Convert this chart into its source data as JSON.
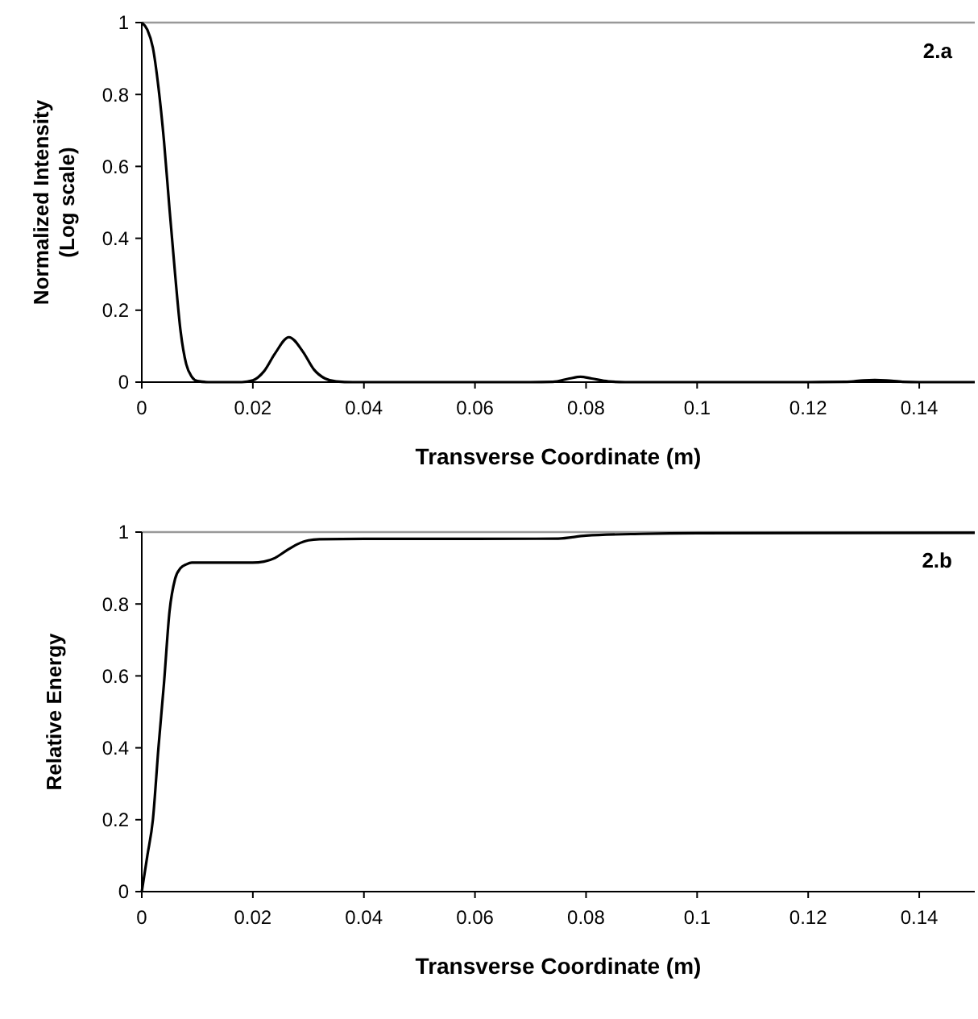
{
  "chart_data": [
    {
      "type": "line",
      "xlabel": "Transverse Coordinate (m)",
      "ylabel": "Normalized Intensity\n(Log scale)",
      "annotations": [
        "2.a"
      ],
      "xlim": [
        0,
        0.15
      ],
      "ylim": [
        0,
        1
      ],
      "xticks": [
        0,
        0.02,
        0.04,
        0.06,
        0.08,
        0.1,
        0.12,
        0.14
      ],
      "yticks": [
        0,
        0.2,
        0.4,
        0.6,
        0.8,
        1
      ],
      "grid": false,
      "series": [
        {
          "color": "#000000",
          "x": [
            0,
            0.001,
            0.002,
            0.003,
            0.004,
            0.005,
            0.006,
            0.007,
            0.008,
            0.009,
            0.01,
            0.012,
            0.015,
            0.018,
            0.02,
            0.022,
            0.024,
            0.0265,
            0.029,
            0.031,
            0.033,
            0.035,
            0.038,
            0.05,
            0.07,
            0.074,
            0.077,
            0.079,
            0.081,
            0.084,
            0.087,
            0.1,
            0.12,
            0.127,
            0.13,
            0.132,
            0.134,
            0.137,
            0.14,
            0.15
          ],
          "values": [
            1,
            0.98,
            0.93,
            0.82,
            0.67,
            0.48,
            0.3,
            0.14,
            0.05,
            0.015,
            0.003,
            0,
            0,
            0,
            0.005,
            0.03,
            0.08,
            0.125,
            0.085,
            0.035,
            0.01,
            0.002,
            0,
            0,
            0,
            0.001,
            0.01,
            0.015,
            0.01,
            0.002,
            0,
            0,
            0,
            0.001,
            0.005,
            0.006,
            0.005,
            0.001,
            0,
            0
          ]
        }
      ]
    },
    {
      "type": "line",
      "xlabel": "Transverse Coordinate (m)",
      "ylabel": "Relative Energy",
      "annotations": [
        "2.b"
      ],
      "xlim": [
        0,
        0.15
      ],
      "ylim": [
        0,
        1
      ],
      "xticks": [
        0,
        0.02,
        0.04,
        0.06,
        0.08,
        0.1,
        0.12,
        0.14
      ],
      "yticks": [
        0,
        0.2,
        0.4,
        0.6,
        0.8,
        1
      ],
      "grid": false,
      "series": [
        {
          "color": "#000000",
          "x": [
            0,
            0.001,
            0.002,
            0.003,
            0.004,
            0.005,
            0.006,
            0.007,
            0.008,
            0.009,
            0.012,
            0.02,
            0.022,
            0.024,
            0.026,
            0.028,
            0.03,
            0.032,
            0.04,
            0.06,
            0.075,
            0.08,
            0.09,
            0.1,
            0.15
          ],
          "values": [
            0,
            0.1,
            0.2,
            0.4,
            0.58,
            0.78,
            0.87,
            0.9,
            0.91,
            0.915,
            0.915,
            0.915,
            0.918,
            0.928,
            0.948,
            0.966,
            0.977,
            0.98,
            0.981,
            0.981,
            0.982,
            0.99,
            0.995,
            0.997,
            0.998
          ]
        }
      ]
    }
  ]
}
